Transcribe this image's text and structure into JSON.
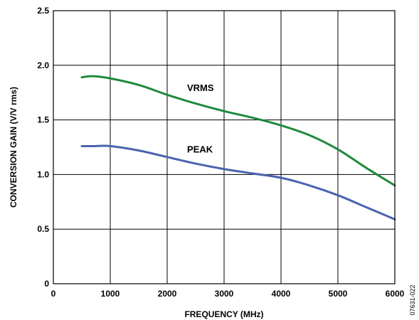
{
  "chart_data": {
    "type": "line",
    "title": "",
    "xlabel": "FREQUENCY (MHz)",
    "ylabel": "CONVERSION GAIN (V/V rms)",
    "xlim": [
      0,
      6000
    ],
    "ylim": [
      0,
      2.5
    ],
    "x_ticks": [
      0,
      1000,
      2000,
      3000,
      4000,
      5000,
      6000
    ],
    "y_ticks": [
      0,
      0.5,
      1.0,
      1.5,
      2.0,
      2.5
    ],
    "x_tick_labels": [
      "0",
      "1000",
      "2000",
      "3000",
      "4000",
      "5000",
      "6000"
    ],
    "y_tick_labels": [
      "0",
      "0.5",
      "1.0",
      "1.5",
      "2.0",
      "2.5"
    ],
    "grid": true,
    "figure_id": "07631-022",
    "series": [
      {
        "name": "VRMS",
        "color": "#1f8a3c",
        "x": [
          500,
          700,
          1000,
          1500,
          2000,
          2500,
          3000,
          3500,
          4000,
          4500,
          5000,
          5500,
          6000
        ],
        "y": [
          1.89,
          1.9,
          1.88,
          1.82,
          1.73,
          1.65,
          1.58,
          1.52,
          1.45,
          1.36,
          1.23,
          1.06,
          0.9
        ]
      },
      {
        "name": "PEAK",
        "color": "#4a63b0",
        "x": [
          500,
          700,
          1000,
          1500,
          2000,
          2500,
          3000,
          3500,
          4000,
          4500,
          5000,
          5500,
          6000
        ],
        "y": [
          1.26,
          1.26,
          1.26,
          1.22,
          1.16,
          1.1,
          1.05,
          1.01,
          0.97,
          0.9,
          0.81,
          0.7,
          0.59
        ]
      }
    ]
  }
}
